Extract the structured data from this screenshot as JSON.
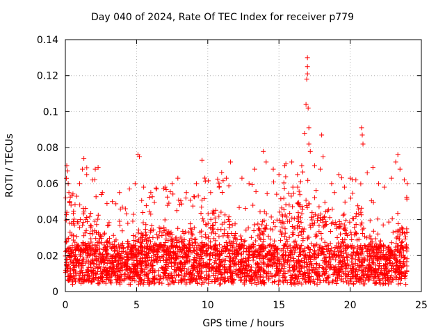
{
  "chart_data": {
    "type": "scatter",
    "title": "Day 040 of 2024, Rate Of TEC Index for receiver p779",
    "xlabel": "GPS time / hours",
    "ylabel": "ROTI / TECUs",
    "xlim": [
      0,
      25
    ],
    "ylim": [
      0,
      0.14
    ],
    "xticks": [
      0,
      5,
      10,
      15,
      20,
      25
    ],
    "xtick_labels": [
      "0",
      "5",
      "10",
      "15",
      "20",
      "25"
    ],
    "yticks": [
      0,
      0.02,
      0.04,
      0.06,
      0.08,
      0.1,
      0.12,
      0.14
    ],
    "ytick_labels": [
      "0",
      "0.02",
      "0.04",
      "0.06",
      "0.08",
      "0.1",
      "0.12",
      "0.14"
    ],
    "grid": true,
    "marker": "+",
    "color": "#ff0000",
    "series": [
      {
        "name": "ROTI",
        "points": [
          [
            0.1,
            0.07
          ],
          [
            0.15,
            0.067
          ],
          [
            0.2,
            0.06
          ],
          [
            0.25,
            0.055
          ],
          [
            0.3,
            0.05
          ],
          [
            0.4,
            0.048
          ],
          [
            0.8,
            0.053
          ],
          [
            1.0,
            0.06
          ],
          [
            1.2,
            0.068
          ],
          [
            1.3,
            0.074
          ],
          [
            1.5,
            0.065
          ],
          [
            1.9,
            0.062
          ],
          [
            2.1,
            0.068
          ],
          [
            2.3,
            0.069
          ],
          [
            2.6,
            0.055
          ],
          [
            3.3,
            0.05
          ],
          [
            3.8,
            0.055
          ],
          [
            4.5,
            0.057
          ],
          [
            4.9,
            0.06
          ],
          [
            5.1,
            0.076
          ],
          [
            5.2,
            0.075
          ],
          [
            5.5,
            0.058
          ],
          [
            6.0,
            0.055
          ],
          [
            6.4,
            0.057
          ],
          [
            7.0,
            0.058
          ],
          [
            7.5,
            0.06
          ],
          [
            7.9,
            0.063
          ],
          [
            8.5,
            0.055
          ],
          [
            9.2,
            0.06
          ],
          [
            9.6,
            0.073
          ],
          [
            10.2,
            0.055
          ],
          [
            10.8,
            0.058
          ],
          [
            11.3,
            0.063
          ],
          [
            11.6,
            0.072
          ],
          [
            12.4,
            0.063
          ],
          [
            12.9,
            0.06
          ],
          [
            13.3,
            0.068
          ],
          [
            13.9,
            0.078
          ],
          [
            14.1,
            0.072
          ],
          [
            14.6,
            0.068
          ],
          [
            15.0,
            0.065
          ],
          [
            15.4,
            0.07
          ],
          [
            15.9,
            0.072
          ],
          [
            16.3,
            0.065
          ],
          [
            16.6,
            0.07
          ],
          [
            16.8,
            0.088
          ],
          [
            16.9,
            0.104
          ],
          [
            16.95,
            0.118
          ],
          [
            17.0,
            0.13
          ],
          [
            17.0,
            0.125
          ],
          [
            17.0,
            0.121
          ],
          [
            17.05,
            0.102
          ],
          [
            17.1,
            0.091
          ],
          [
            17.1,
            0.082
          ],
          [
            17.2,
            0.078
          ],
          [
            17.5,
            0.07
          ],
          [
            17.9,
            0.068
          ],
          [
            18.0,
            0.087
          ],
          [
            18.1,
            0.075
          ],
          [
            18.7,
            0.06
          ],
          [
            19.2,
            0.065
          ],
          [
            19.6,
            0.058
          ],
          [
            20.0,
            0.063
          ],
          [
            20.4,
            0.062
          ],
          [
            20.8,
            0.091
          ],
          [
            20.85,
            0.087
          ],
          [
            20.9,
            0.082
          ],
          [
            21.2,
            0.066
          ],
          [
            21.6,
            0.069
          ],
          [
            22.0,
            0.06
          ],
          [
            22.4,
            0.058
          ],
          [
            22.9,
            0.063
          ],
          [
            23.2,
            0.072
          ],
          [
            23.35,
            0.076
          ],
          [
            23.5,
            0.068
          ],
          [
            23.8,
            0.062
          ],
          [
            24.0,
            0.06
          ]
        ]
      }
    ]
  }
}
